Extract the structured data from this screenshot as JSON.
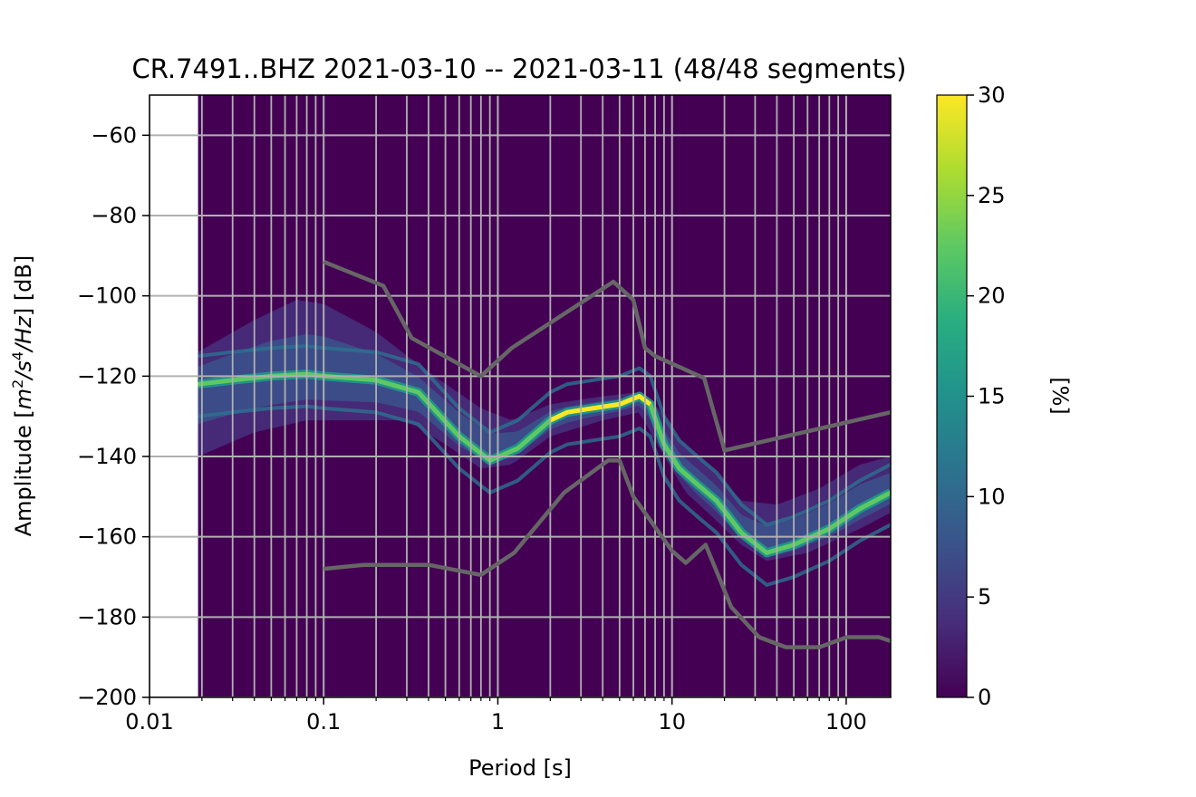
{
  "chart_data": {
    "type": "heatmap",
    "title": "CR.7491..BHZ   2021-03-10 -- 2021-03-11  (48/48 segments)",
    "xlabel": "Period [s]",
    "ylabel_parts": {
      "prefix": "Amplitude [",
      "m": "m",
      "sup2": "2",
      "s": "/s",
      "sup4": "4",
      "hz": "/Hz",
      "suffix": "] [dB]"
    },
    "x_scale": "log",
    "xlim": [
      0.01,
      180
    ],
    "ylim": [
      -200,
      -50
    ],
    "x_ticks": [
      {
        "value": 0.01,
        "label": "0.01"
      },
      {
        "value": 0.1,
        "label": "0.1"
      },
      {
        "value": 1,
        "label": "1"
      },
      {
        "value": 10,
        "label": "10"
      },
      {
        "value": 100,
        "label": "100"
      }
    ],
    "y_ticks": [
      {
        "value": -60,
        "label": "−60"
      },
      {
        "value": -80,
        "label": "−80"
      },
      {
        "value": -100,
        "label": "−100"
      },
      {
        "value": -120,
        "label": "−120"
      },
      {
        "value": -140,
        "label": "−140"
      },
      {
        "value": -160,
        "label": "−160"
      },
      {
        "value": -180,
        "label": "−180"
      },
      {
        "value": -200,
        "label": "−200"
      }
    ],
    "grid": true,
    "data_period_min": 0.019,
    "colorbar": {
      "label": "[%]",
      "range": [
        0,
        30
      ],
      "colormap": "viridis",
      "ticks": [
        {
          "value": 0,
          "label": "0"
        },
        {
          "value": 5,
          "label": "5"
        },
        {
          "value": 10,
          "label": "10"
        },
        {
          "value": 15,
          "label": "15"
        },
        {
          "value": 20,
          "label": "20"
        },
        {
          "value": 25,
          "label": "25"
        },
        {
          "value": 30,
          "label": "30"
        }
      ]
    },
    "background_color": "#440154",
    "grid_color": "#b0b0b0",
    "noise_model_color": "#666666",
    "high_noise_model": [
      [
        0.1,
        -91.5
      ],
      [
        0.22,
        -97.5
      ],
      [
        0.32,
        -110.5
      ],
      [
        0.8,
        -120
      ],
      [
        1.2,
        -113
      ],
      [
        4.6,
        -96.5
      ],
      [
        6.0,
        -101
      ],
      [
        7.0,
        -113
      ],
      [
        8.0,
        -115
      ],
      [
        15.3,
        -120.5
      ],
      [
        20,
        -138.5
      ],
      [
        180,
        -129
      ]
    ],
    "low_noise_model": [
      [
        0.1,
        -168
      ],
      [
        0.17,
        -167
      ],
      [
        0.4,
        -167
      ],
      [
        0.8,
        -169.5
      ],
      [
        1.24,
        -164
      ],
      [
        2.4,
        -149
      ],
      [
        4.3,
        -141
      ],
      [
        5.0,
        -141
      ],
      [
        6.0,
        -150
      ],
      [
        10.0,
        -163.5
      ],
      [
        12.0,
        -166.5
      ],
      [
        15.6,
        -162
      ],
      [
        21.9,
        -177.5
      ],
      [
        31.6,
        -185
      ],
      [
        45.0,
        -187.5
      ],
      [
        70.0,
        -187.5
      ],
      [
        101,
        -185
      ],
      [
        154,
        -185
      ],
      [
        180,
        -186
      ]
    ],
    "psd_mode": [
      [
        0.019,
        -122
      ],
      [
        0.03,
        -121
      ],
      [
        0.05,
        -120
      ],
      [
        0.08,
        -119.5
      ],
      [
        0.1,
        -120
      ],
      [
        0.2,
        -121
      ],
      [
        0.35,
        -124
      ],
      [
        0.6,
        -135
      ],
      [
        0.9,
        -141
      ],
      [
        1.3,
        -138
      ],
      [
        2.0,
        -131
      ],
      [
        2.5,
        -129
      ],
      [
        3.5,
        -128
      ],
      [
        5.0,
        -127
      ],
      [
        6.5,
        -125
      ],
      [
        7.5,
        -127
      ],
      [
        9.0,
        -137
      ],
      [
        11,
        -143
      ],
      [
        14,
        -147
      ],
      [
        18,
        -151
      ],
      [
        25,
        -159
      ],
      [
        35,
        -164
      ],
      [
        50,
        -162
      ],
      [
        80,
        -158
      ],
      [
        120,
        -153
      ],
      [
        180,
        -149
      ]
    ],
    "psd_upper": [
      [
        0.019,
        -114
      ],
      [
        0.04,
        -106
      ],
      [
        0.07,
        -101
      ],
      [
        0.1,
        -102
      ],
      [
        0.2,
        -109
      ],
      [
        0.4,
        -119
      ],
      [
        0.8,
        -128
      ],
      [
        1.2,
        -131
      ],
      [
        2.0,
        -127
      ],
      [
        4.0,
        -125
      ],
      [
        6.5,
        -124
      ],
      [
        8.0,
        -127
      ],
      [
        11,
        -136
      ],
      [
        17,
        -143
      ],
      [
        25,
        -151
      ],
      [
        40,
        -152
      ],
      [
        70,
        -148
      ],
      [
        120,
        -142
      ],
      [
        180,
        -140
      ]
    ],
    "psd_lower": [
      [
        0.019,
        -140
      ],
      [
        0.04,
        -134
      ],
      [
        0.08,
        -131
      ],
      [
        0.15,
        -131
      ],
      [
        0.3,
        -131
      ],
      [
        0.5,
        -137
      ],
      [
        0.8,
        -143
      ],
      [
        1.2,
        -142
      ],
      [
        2.0,
        -135
      ],
      [
        4.0,
        -131
      ],
      [
        6.5,
        -129
      ],
      [
        8.0,
        -136
      ],
      [
        12,
        -149
      ],
      [
        17,
        -155
      ],
      [
        25,
        -162
      ],
      [
        35,
        -166
      ],
      [
        60,
        -164
      ],
      [
        120,
        -158
      ],
      [
        180,
        -154
      ]
    ]
  }
}
